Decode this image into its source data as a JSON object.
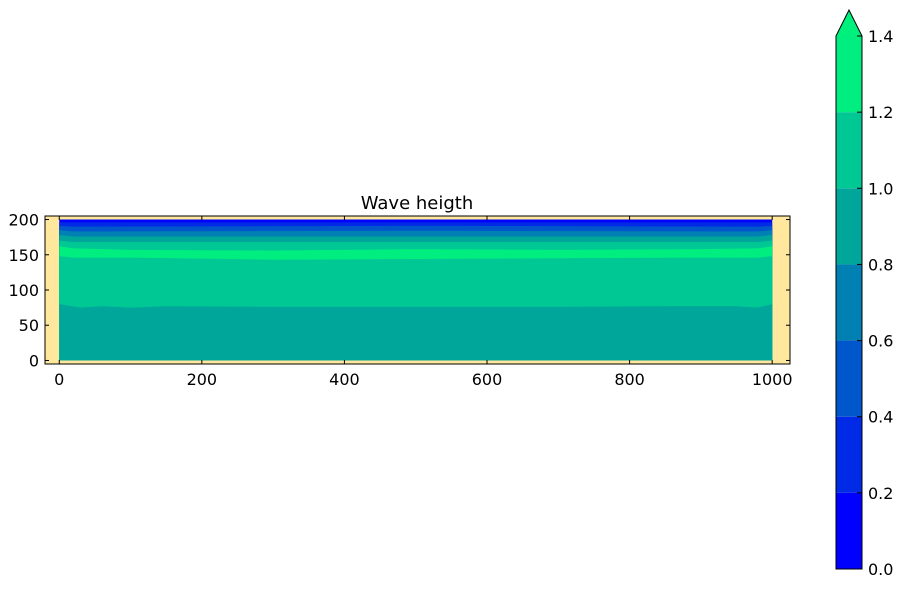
{
  "chart_data": {
    "type": "heatmap",
    "title": "Wave heigth",
    "xlabel": "",
    "ylabel": "",
    "xlim": [
      -20,
      1025
    ],
    "ylim": [
      -5,
      205
    ],
    "domain": {
      "x": [
        0,
        1000
      ],
      "y": [
        0,
        200
      ]
    },
    "x_ticks": [
      0,
      200,
      400,
      600,
      800,
      1000
    ],
    "x_tick_labels": [
      "0",
      "200",
      "400",
      "600",
      "800",
      "1000"
    ],
    "y_ticks": [
      0,
      50,
      100,
      150,
      200
    ],
    "y_tick_labels": [
      "0",
      "50",
      "100",
      "150",
      "200"
    ],
    "grid": false,
    "background_color": "#ffe79e",
    "colorbar": {
      "levels": [
        0.0,
        0.2,
        0.4,
        0.6,
        0.8,
        1.0,
        1.2,
        1.4
      ],
      "tick_labels": [
        "0.0",
        "0.2",
        "0.4",
        "0.6",
        "0.8",
        "1.0",
        "1.2",
        "1.4"
      ],
      "colors": [
        "#0000ff",
        "#002ae5",
        "#0056cb",
        "#0080b3",
        "#00a699",
        "#00c895",
        "#00ee7f"
      ],
      "extend": "max",
      "extend_color": "#00f07d",
      "placement": "right"
    },
    "bands": [
      {
        "range": "0.8-1.0",
        "color": "#00a699",
        "top_profile": [
          [
            0,
            80
          ],
          [
            30,
            75
          ],
          [
            60,
            77
          ],
          [
            100,
            75
          ],
          [
            150,
            77
          ],
          [
            300,
            76
          ],
          [
            500,
            76
          ],
          [
            700,
            76
          ],
          [
            850,
            77
          ],
          [
            950,
            77
          ],
          [
            980,
            75
          ],
          [
            1000,
            80
          ]
        ]
      },
      {
        "range": "1.0-1.2",
        "color": "#00c895",
        "top_profile": [
          [
            0,
            148
          ],
          [
            20,
            146
          ],
          [
            100,
            146
          ],
          [
            300,
            143
          ],
          [
            500,
            144
          ],
          [
            700,
            145
          ],
          [
            900,
            146
          ],
          [
            980,
            146
          ],
          [
            1000,
            148
          ]
        ]
      },
      {
        "range": "1.2-1.4",
        "color": "#00ee7f",
        "top_profile": [
          [
            0,
            162
          ],
          [
            20,
            159
          ],
          [
            100,
            157
          ],
          [
            300,
            156
          ],
          [
            500,
            158
          ],
          [
            700,
            157
          ],
          [
            900,
            158
          ],
          [
            980,
            159
          ],
          [
            1000,
            162
          ]
        ]
      },
      {
        "range": "1.0-1.2",
        "color": "#00c895",
        "top_profile": [
          [
            0,
            170
          ],
          [
            20,
            168
          ],
          [
            100,
            168
          ],
          [
            500,
            168
          ],
          [
            900,
            168
          ],
          [
            980,
            168
          ],
          [
            1000,
            170
          ]
        ]
      },
      {
        "range": "0.8-1.0",
        "color": "#00a699",
        "top_profile": [
          [
            0,
            178
          ],
          [
            20,
            176
          ],
          [
            500,
            176
          ],
          [
            980,
            176
          ],
          [
            1000,
            178
          ]
        ]
      },
      {
        "range": "0.6-0.8",
        "color": "#0080b3",
        "top_profile": [
          [
            0,
            185
          ],
          [
            20,
            183
          ],
          [
            500,
            184
          ],
          [
            980,
            183
          ],
          [
            1000,
            185
          ]
        ]
      },
      {
        "range": "0.4-0.6",
        "color": "#0056cb",
        "top_profile": [
          [
            0,
            191
          ],
          [
            20,
            190
          ],
          [
            500,
            191
          ],
          [
            980,
            190
          ],
          [
            1000,
            191
          ]
        ]
      },
      {
        "range": "0.2-0.4",
        "color": "#002ae5",
        "top_profile": [
          [
            0,
            196
          ],
          [
            500,
            196
          ],
          [
            1000,
            196
          ]
        ]
      },
      {
        "range": "0.0-0.2",
        "color": "#0000ff",
        "top_profile": [
          [
            0,
            200
          ],
          [
            1000,
            200
          ]
        ]
      }
    ]
  }
}
